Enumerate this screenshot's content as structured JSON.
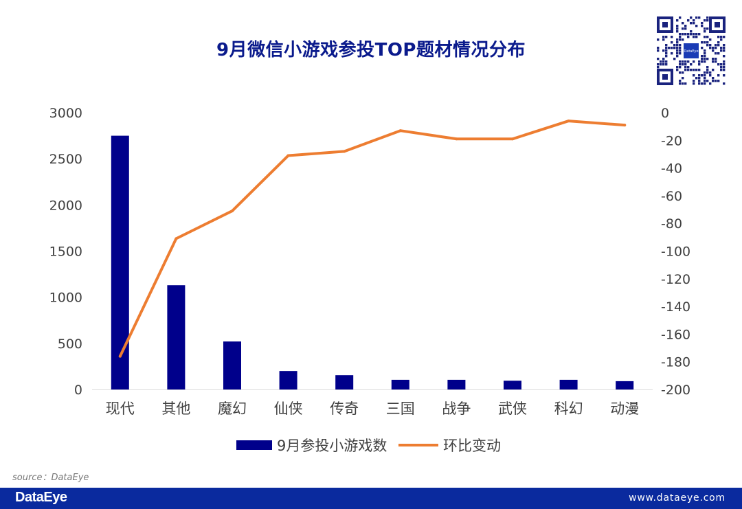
{
  "chart_data": {
    "type": "bar",
    "title": "9月微信小游戏参投TOP题材情况分布",
    "categories": [
      "现代",
      "其他",
      "魔幻",
      "仙侠",
      "传奇",
      "三国",
      "战争",
      "武侠",
      "科幻",
      "动漫"
    ],
    "series": [
      {
        "name": "9月参投小游戏数",
        "type": "bar",
        "axis": "left",
        "color": "#00008b",
        "values": [
          2750,
          1130,
          520,
          200,
          155,
          105,
          105,
          95,
          105,
          90
        ]
      },
      {
        "name": "环比变动",
        "type": "line",
        "axis": "right",
        "color": "#ed7d31",
        "values": [
          -176,
          -91,
          -71,
          -31,
          -28,
          -13,
          -19,
          -19,
          -6,
          -9
        ]
      }
    ],
    "y_left": {
      "min": 0,
      "max": 3000,
      "ticks": [
        0,
        500,
        1000,
        1500,
        2000,
        2500,
        3000
      ]
    },
    "y_right": {
      "min": -200,
      "max": 0,
      "ticks": [
        0,
        -20,
        -40,
        -60,
        -80,
        -100,
        -120,
        -140,
        -160,
        -180,
        -200
      ]
    },
    "grid": false,
    "legend_position": "bottom"
  },
  "source_text": "source：DataEye",
  "footer": {
    "brand": "DataEye",
    "website": "www.dataeye.com"
  },
  "qr_center_label": "DataEye"
}
